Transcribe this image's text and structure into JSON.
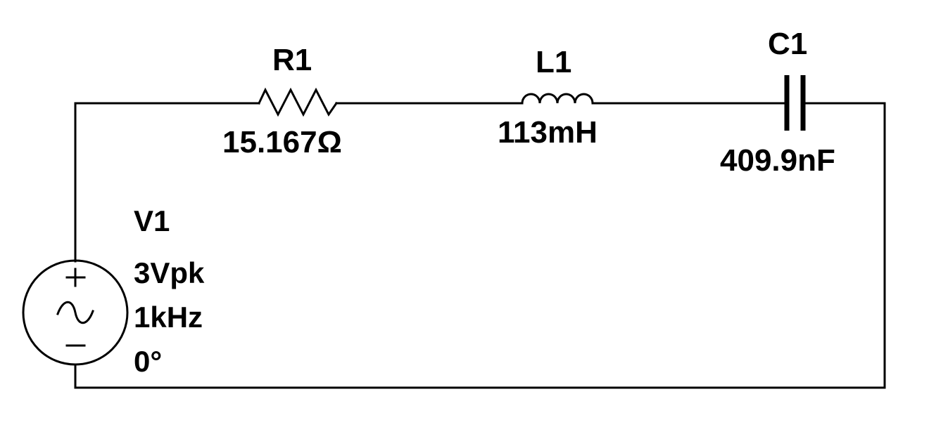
{
  "components": {
    "r1": {
      "ref": "R1",
      "value": "15.167Ω"
    },
    "l1": {
      "ref": "L1",
      "value": "113mH"
    },
    "c1": {
      "ref": "C1",
      "value": "409.9nF"
    },
    "v1": {
      "ref": "V1",
      "amplitude": "3Vpk",
      "frequency": "1kHz",
      "phase": "0°"
    }
  },
  "symbols": {
    "plus": "+",
    "minus": "−",
    "wave": "~"
  }
}
